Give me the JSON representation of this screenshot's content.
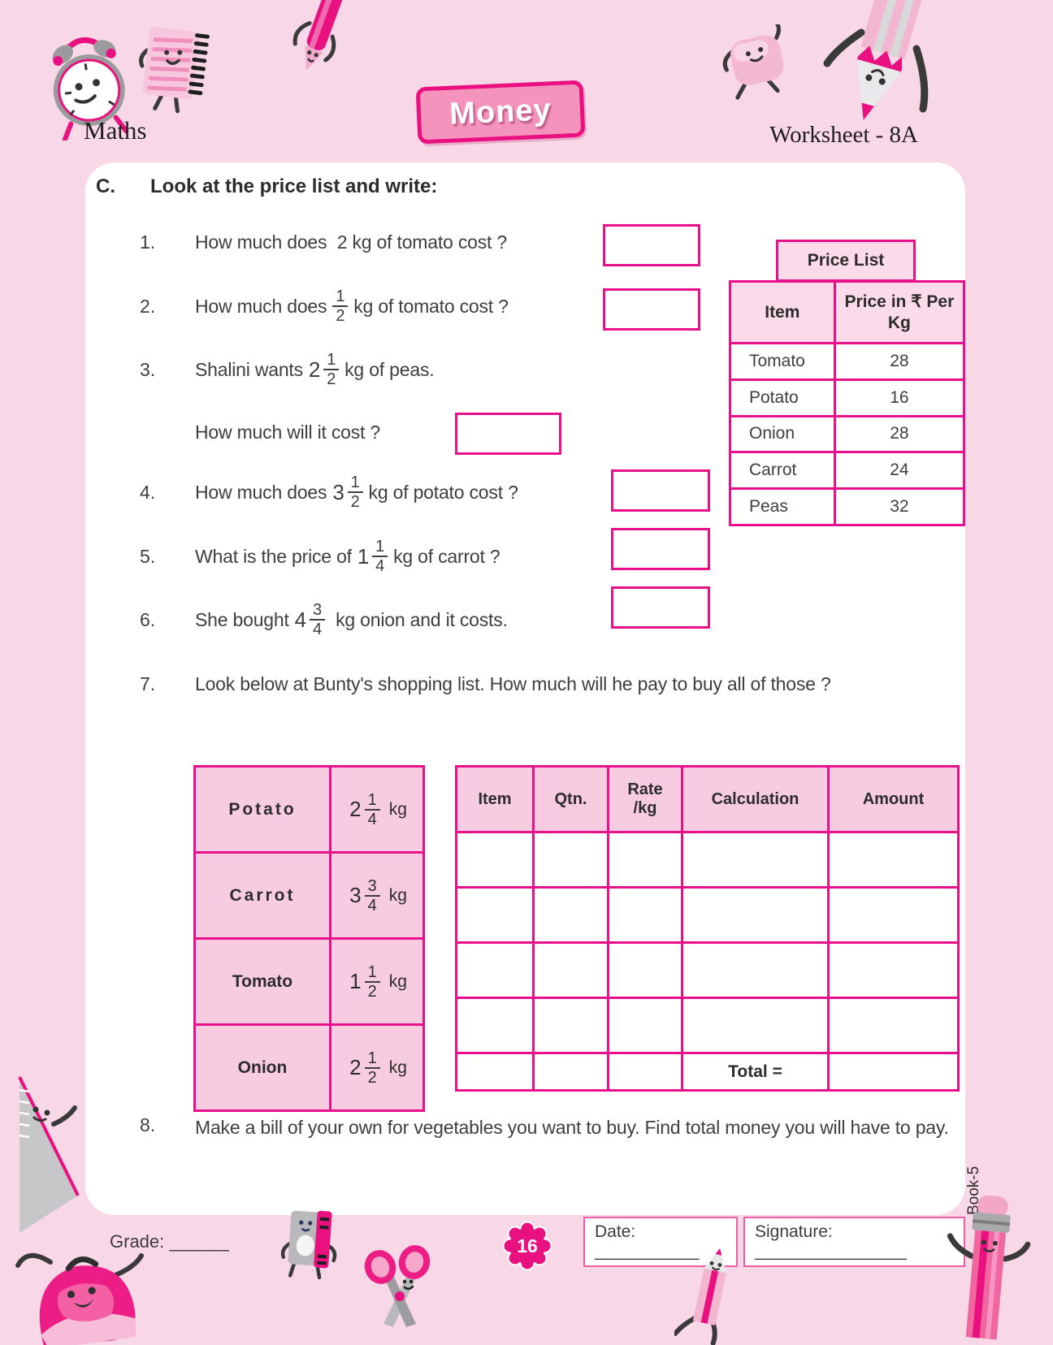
{
  "header": {
    "subject": "Maths",
    "title": "Money",
    "worksheet": "Worksheet - 8A"
  },
  "section": {
    "label": "C.",
    "heading": "Look at the price list and write:"
  },
  "questions": [
    {
      "no": "1.",
      "segments": [
        {
          "t": "text",
          "v": "How much does  2 kg of tomato cost ?"
        }
      ]
    },
    {
      "no": "2.",
      "segments": [
        {
          "t": "text",
          "v": "How much does"
        },
        {
          "t": "frac",
          "n": "1",
          "d": "2"
        },
        {
          "t": "text",
          "v": "kg of tomato cost ?"
        }
      ]
    },
    {
      "no": "3.",
      "segments": [
        {
          "t": "text",
          "v": "Shalini wants"
        },
        {
          "t": "frac",
          "w": "2",
          "n": "1",
          "d": "2"
        },
        {
          "t": "text",
          "v": "kg of peas."
        }
      ]
    },
    {
      "no": "",
      "segments": [
        {
          "t": "text",
          "v": "How much will it cost ?"
        }
      ]
    },
    {
      "no": "4.",
      "segments": [
        {
          "t": "text",
          "v": "How much does"
        },
        {
          "t": "frac",
          "w": "3",
          "n": "1",
          "d": "2"
        },
        {
          "t": "text",
          "v": "kg of potato cost ?"
        }
      ]
    },
    {
      "no": "5.",
      "segments": [
        {
          "t": "text",
          "v": "What is the price of"
        },
        {
          "t": "frac",
          "w": "1",
          "n": "1",
          "d": "4"
        },
        {
          "t": "text",
          "v": "kg of carrot ?"
        }
      ]
    },
    {
      "no": "6.",
      "segments": [
        {
          "t": "text",
          "v": "She bought"
        },
        {
          "t": "frac",
          "w": "4",
          "n": "3",
          "d": "4"
        },
        {
          "t": "text",
          "v": " kg onion and it costs."
        }
      ]
    },
    {
      "no": "7.",
      "segments": [
        {
          "t": "text",
          "v": "Look below at Bunty's shopping list. How much will he pay to buy all of those ?"
        }
      ]
    },
    {
      "no": "8.",
      "segments": [
        {
          "t": "text",
          "v": "Make a bill of your own for vegetables you want to buy. Find total money you will have to pay."
        }
      ]
    }
  ],
  "price_list": {
    "title": "Price List",
    "headers": [
      "Item",
      "Price in ₹\nPer Kg"
    ],
    "rows": [
      [
        "Tomato",
        "28"
      ],
      [
        "Potato",
        "16"
      ],
      [
        "Onion",
        "28"
      ],
      [
        "Carrot",
        "24"
      ],
      [
        "Peas",
        "32"
      ]
    ]
  },
  "shopping_list": {
    "rows": [
      {
        "item": "Potato",
        "w": "2",
        "n": "1",
        "d": "4",
        "unit": "kg"
      },
      {
        "item": "Carrot",
        "w": "3",
        "n": "3",
        "d": "4",
        "unit": "kg"
      },
      {
        "item": "Tomato",
        "w": "1",
        "n": "1",
        "d": "2",
        "unit": "kg"
      },
      {
        "item": "Onion",
        "w": "2",
        "n": "1",
        "d": "2",
        "unit": "kg"
      }
    ]
  },
  "bill": {
    "headers": [
      "Item",
      "Qtn.",
      "Rate\n/kg",
      "Calculation",
      "Amount"
    ],
    "empty_row_count": 4,
    "total_label": "Total  ="
  },
  "footer": {
    "grade_label": "Grade: ______",
    "page_number": "16",
    "date_label": "Date: ___________",
    "signature_label": "Signature: ________________",
    "book_label": "Book-5"
  },
  "colors": {
    "page_background": "#f8d7e7",
    "accent_magenta": "#e9118b",
    "badge_fill": "#f493bc",
    "table_header_pink": "#fbdbe9",
    "table_cell_pink": "#f8cce0",
    "text_dark": "#3e3e3e"
  }
}
